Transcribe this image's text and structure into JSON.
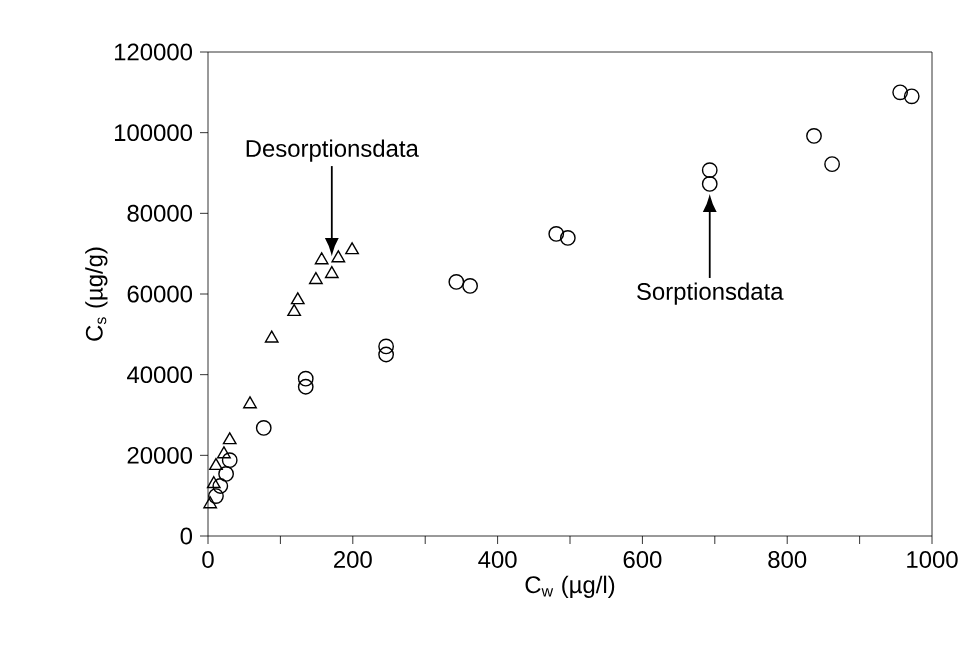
{
  "chart_data": {
    "type": "scatter",
    "xlabel": "C$_{w}$ (µg/l)",
    "ylabel": "C$_{s}$ (µg/g)",
    "xlim": [
      0,
      1000
    ],
    "ylim": [
      0,
      120000
    ],
    "xticks": [
      0,
      {
        "value": 100,
        "label": null
      },
      200,
      {
        "value": 300,
        "label": null
      },
      400,
      {
        "value": 500,
        "label": null
      },
      600,
      {
        "value": 700,
        "label": null
      },
      800,
      {
        "value": 900,
        "label": null
      },
      1000
    ],
    "yticks": [
      0,
      20000,
      40000,
      60000,
      80000,
      100000,
      120000
    ],
    "grid": false,
    "series": [
      {
        "color": "#000000",
        "marker": "circle",
        "x": [
          11,
          17,
          25,
          30,
          77,
          135,
          135,
          246,
          246,
          343,
          362,
          481,
          497,
          693,
          693,
          837,
          862,
          956,
          972
        ],
        "values": [
          9900,
          12400,
          15400,
          18800,
          26800,
          37000,
          39000,
          45000,
          47000,
          63000,
          62000,
          74900,
          73900,
          87300,
          90700,
          99200,
          92200,
          110000,
          109000
        ]
      },
      {
        "color": "#000000",
        "marker": "triangle",
        "x": [
          3,
          8,
          11,
          22,
          30,
          58,
          88,
          119,
          124,
          149,
          157,
          171,
          180,
          199
        ],
        "values": [
          7900,
          12900,
          17400,
          20300,
          23800,
          32700,
          49000,
          55600,
          58500,
          63500,
          68400,
          65000,
          68900,
          70900
        ]
      }
    ],
    "annotations": [
      {
        "text": "Desorptionsdata",
        "x": 171,
        "y": 69400
      },
      {
        "text": "Sorptionsdata",
        "x": 693,
        "y": 84800
      }
    ]
  }
}
